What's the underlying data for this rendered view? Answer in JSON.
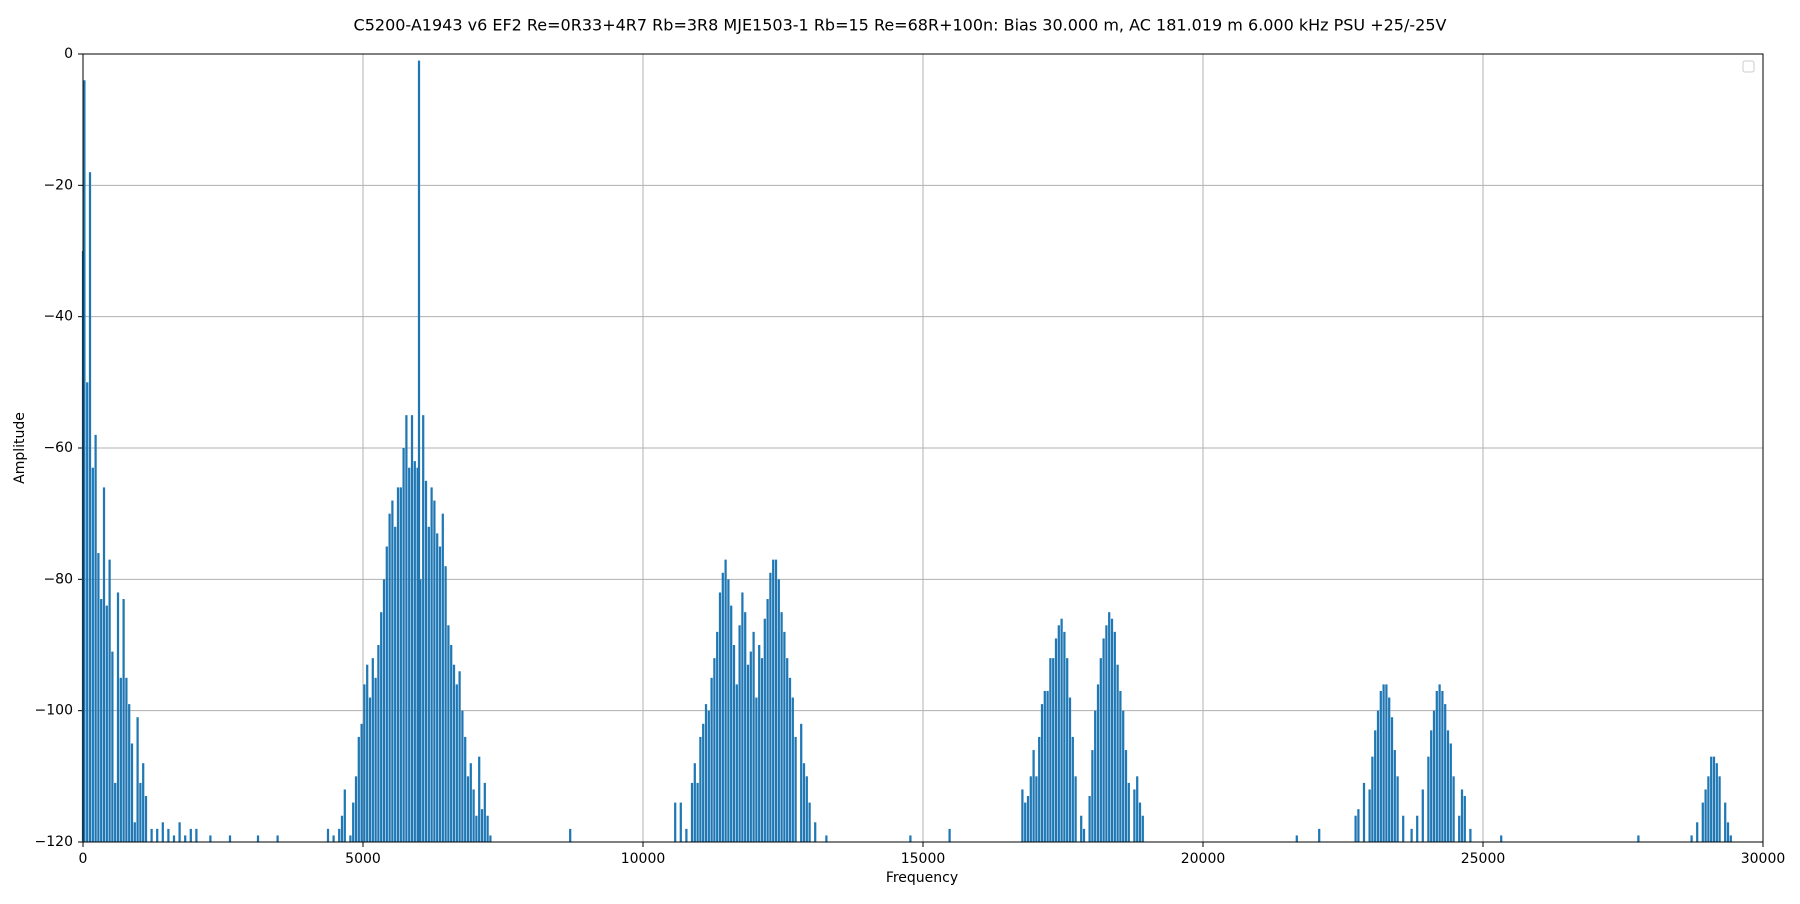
{
  "chart_data": {
    "type": "bar",
    "title": "C5200-A1943 v6 EF2 Re=0R33+4R7 Rb=3R8 MJE1503-1 Rb=15 Re=68R+100n: Bias 30.000 m, AC 181.019 m 6.000 kHz PSU +25/-25V",
    "x_label": "Frequency",
    "y_label": "Amplitude",
    "color": "#1f77b4",
    "grid": true,
    "legend": "upper right",
    "xlim": [
      0,
      30000
    ],
    "ylim": [
      -120,
      0
    ],
    "xticks": [
      0,
      5000,
      10000,
      15000,
      20000,
      25000,
      30000
    ],
    "yticks": [
      {
        "value": -120,
        "label": "−120"
      },
      {
        "value": -100,
        "label": "−100"
      },
      {
        "value": -80,
        "label": "−80"
      },
      {
        "value": -60,
        "label": "−60"
      },
      {
        "value": -40,
        "label": "−40"
      },
      {
        "value": -20,
        "label": "−20"
      },
      0
    ],
    "x": [
      0,
      25,
      75,
      125,
      175,
      225,
      275,
      325,
      375,
      425,
      475,
      525,
      575,
      625,
      675,
      725,
      775,
      825,
      875,
      925,
      975,
      1025,
      1075,
      1125,
      1225,
      1325,
      1425,
      1525,
      1625,
      1725,
      1825,
      1925,
      2025,
      2275,
      2625,
      3125,
      3475,
      4375,
      4475,
      4575,
      4625,
      4675,
      4775,
      4825,
      4875,
      4925,
      4975,
      5025,
      5075,
      5125,
      5175,
      5225,
      5275,
      5325,
      5375,
      5425,
      5475,
      5525,
      5575,
      5625,
      5675,
      5725,
      5775,
      5825,
      5875,
      5925,
      5975,
      6000,
      6025,
      6075,
      6125,
      6175,
      6225,
      6275,
      6325,
      6375,
      6425,
      6475,
      6525,
      6575,
      6625,
      6675,
      6725,
      6775,
      6825,
      6875,
      6925,
      6975,
      7025,
      7075,
      7125,
      7175,
      7225,
      7275,
      8700,
      10575,
      10675,
      10775,
      10875,
      10925,
      10975,
      11025,
      11075,
      11125,
      11175,
      11225,
      11275,
      11325,
      11375,
      11425,
      11475,
      11525,
      11575,
      11625,
      11675,
      11725,
      11775,
      11825,
      11875,
      11925,
      11975,
      12025,
      12075,
      12125,
      12175,
      12225,
      12275,
      12325,
      12375,
      12425,
      12475,
      12525,
      12575,
      12625,
      12675,
      12725,
      12825,
      12875,
      12925,
      12975,
      13075,
      13275,
      14775,
      15475,
      16775,
      16825,
      16875,
      16925,
      16975,
      17025,
      17075,
      17125,
      17175,
      17225,
      17275,
      17325,
      17375,
      17425,
      17475,
      17525,
      17575,
      17625,
      17675,
      17725,
      17825,
      17875,
      17975,
      18025,
      18075,
      18125,
      18175,
      18225,
      18275,
      18325,
      18375,
      18425,
      18475,
      18525,
      18575,
      18625,
      18675,
      18775,
      18825,
      18875,
      18925,
      21675,
      22075,
      22725,
      22775,
      22875,
      22975,
      23025,
      23075,
      23125,
      23175,
      23225,
      23275,
      23325,
      23375,
      23425,
      23475,
      23575,
      23725,
      23825,
      23925,
      24025,
      24075,
      24125,
      24175,
      24225,
      24275,
      24325,
      24375,
      24425,
      24475,
      24575,
      24625,
      24675,
      24775,
      25325,
      27775,
      28725,
      28825,
      28925,
      28975,
      29025,
      29075,
      29125,
      29175,
      29225,
      29325,
      29375,
      29425
    ],
    "values": [
      -30,
      -4,
      -50,
      -18,
      -63,
      -58,
      -76,
      -83,
      -66,
      -84,
      -77,
      -91,
      -111,
      -82,
      -95,
      -83,
      -95,
      -99,
      -105,
      -117,
      -101,
      -111,
      -108,
      -113,
      -118,
      -118,
      -117,
      -118,
      -119,
      -117,
      -119,
      -118,
      -118,
      -119,
      -119,
      -119,
      -119,
      -118,
      -119,
      -118,
      -116,
      -112,
      -119,
      -114,
      -110,
      -104,
      -102,
      -96,
      -93,
      -98,
      -92,
      -95,
      -90,
      -85,
      -80,
      -75,
      -70,
      -68,
      -72,
      -66,
      -66,
      -60,
      -55,
      -63,
      -55,
      -62,
      -63,
      -1,
      -80,
      -55,
      -65,
      -72,
      -66,
      -68,
      -73,
      -75,
      -70,
      -78,
      -87,
      -90,
      -93,
      -96,
      -94,
      -100,
      -104,
      -110,
      -108,
      -112,
      -116,
      -107,
      -115,
      -111,
      -116,
      -119,
      -118,
      -114,
      -114,
      -118,
      -111,
      -108,
      -111,
      -104,
      -102,
      -99,
      -100,
      -95,
      -92,
      -88,
      -82,
      -79,
      -77,
      -80,
      -84,
      -90,
      -96,
      -87,
      -82,
      -85,
      -93,
      -91,
      -88,
      -98,
      -90,
      -92,
      -86,
      -83,
      -79,
      -77,
      -77,
      -80,
      -85,
      -88,
      -92,
      -95,
      -98,
      -104,
      -102,
      -108,
      -110,
      -114,
      -117,
      -119,
      -119,
      -118,
      -112,
      -114,
      -113,
      -110,
      -106,
      -110,
      -104,
      -99,
      -97,
      -97,
      -92,
      -92,
      -89,
      -87,
      -86,
      -88,
      -92,
      -98,
      -104,
      -110,
      -116,
      -118,
      -113,
      -106,
      -100,
      -96,
      -92,
      -89,
      -87,
      -85,
      -86,
      -88,
      -93,
      -97,
      -100,
      -106,
      -111,
      -112,
      -110,
      -114,
      -116,
      -119,
      -118,
      -116,
      -115,
      -111,
      -112,
      -107,
      -103,
      -100,
      -97,
      -96,
      -96,
      -98,
      -101,
      -106,
      -110,
      -116,
      -118,
      -116,
      -112,
      -107,
      -103,
      -100,
      -97,
      -96,
      -97,
      -99,
      -103,
      -105,
      -110,
      -116,
      -112,
      -113,
      -118,
      -119,
      -119,
      -119,
      -117,
      -114,
      -112,
      -110,
      -107,
      -107,
      -108,
      -110,
      -114,
      -117,
      -119
    ]
  }
}
